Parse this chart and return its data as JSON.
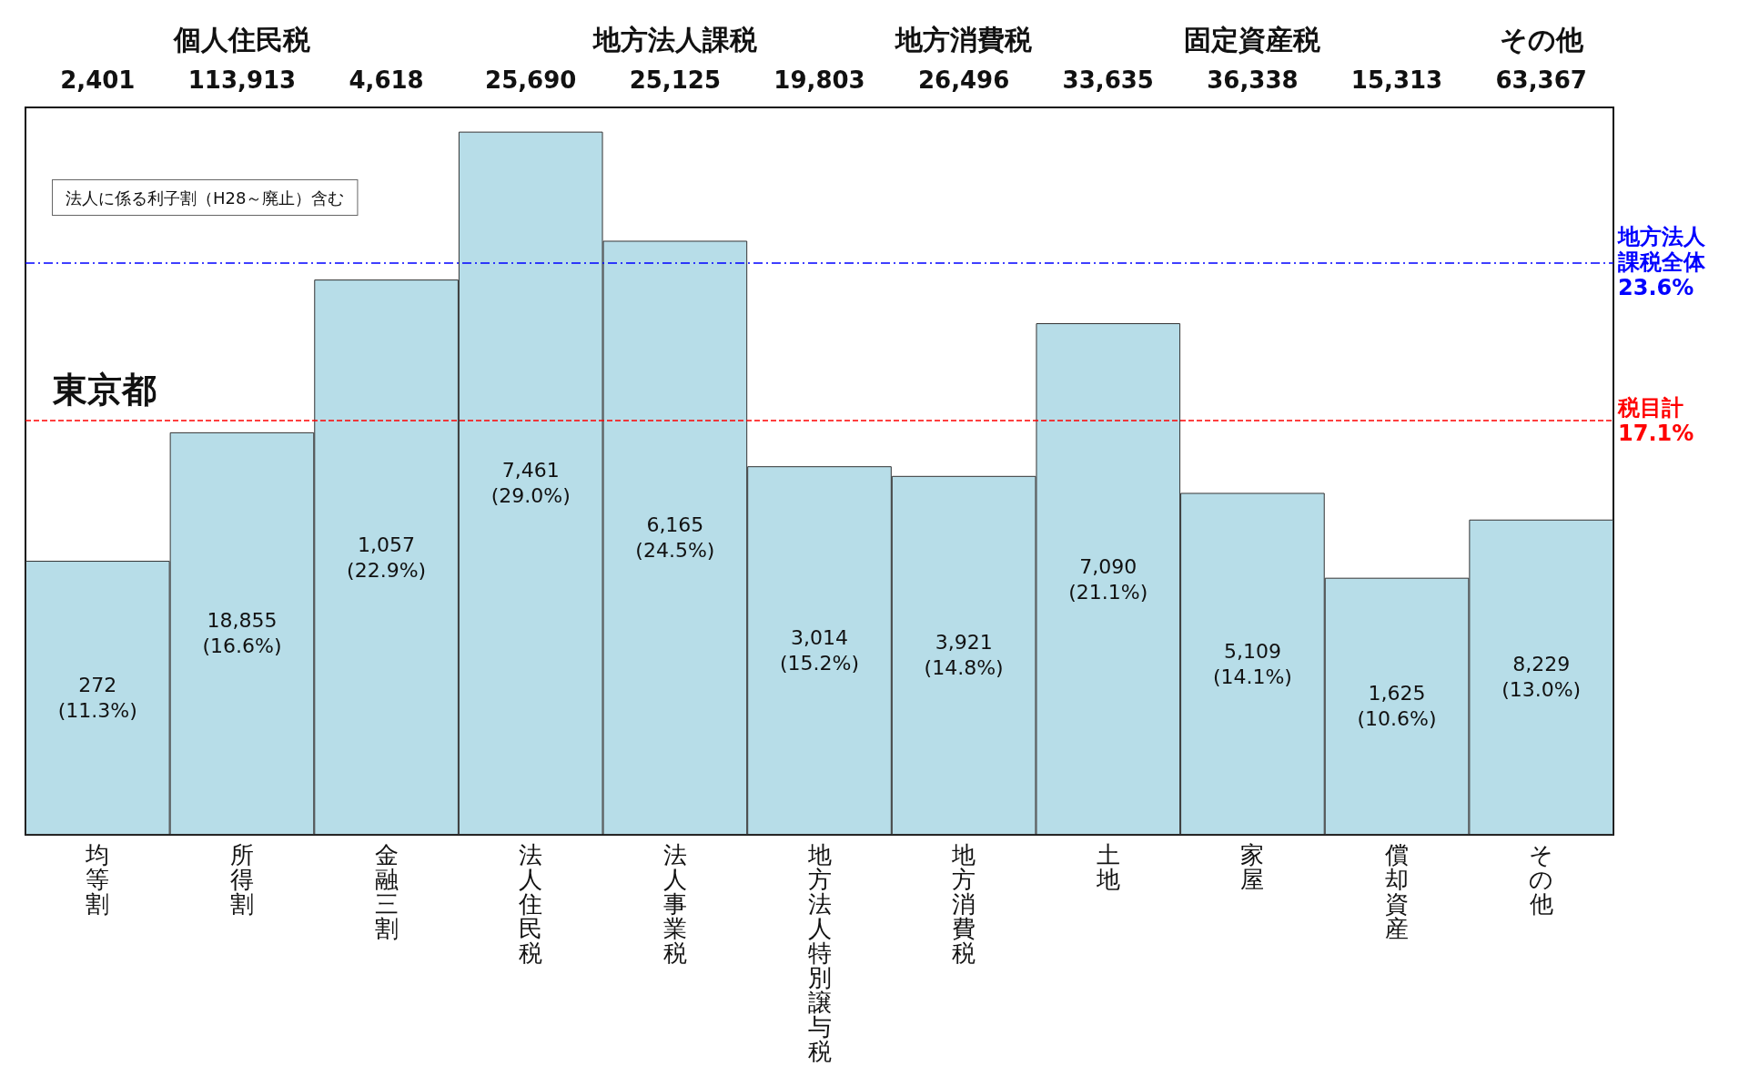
{
  "chart_data": {
    "type": "bar",
    "categories": [
      "均等割",
      "所得割",
      "金融三割",
      "法人住民税",
      "法人事業税",
      "地方法人特別譲与税",
      "地方消費税",
      "土地",
      "家屋",
      "償却資産",
      "その他"
    ],
    "series": [
      {
        "color": "#b7dde8",
        "values": [
          11.3,
          16.6,
          22.9,
          29.0,
          24.5,
          15.2,
          14.8,
          21.1,
          14.1,
          10.6,
          13.0
        ],
        "value_labels": [
          "272\n(11.3%)",
          "18,855\n(16.6%)",
          "1,057\n(22.9%)",
          "7,461\n(29.0%)",
          "6,165\n(24.5%)",
          "3,014\n(15.2%)",
          "3,921\n(14.8%)",
          "7,090\n(21.1%)",
          "5,109\n(14.1%)",
          "1,625\n(10.6%)",
          "8,229\n(13.0%)"
        ]
      }
    ],
    "ref_lines": [
      {
        "axis": "y",
        "value": 23.6,
        "label": "地方法人課税全体\n23.6%",
        "color": "#0000ff",
        "line_style": "dashed"
      },
      {
        "axis": "y",
        "value": 17.1,
        "label": "税目計\n17.1%",
        "color": "#ff0000",
        "line_style": "dotted"
      }
    ],
    "annotations": [
      "東京都",
      "法人に係る利子割（H28～廃止）含む",
      "個人住民税",
      "地方法人課税",
      "地方消費税",
      "固定資産税",
      "その他",
      "2,401",
      "113,913",
      "4,618",
      "25,690",
      "25,125",
      "19,803",
      "26,496",
      "33,635",
      "36,338",
      "15,313",
      "63,367"
    ],
    "grid": false
  }
}
